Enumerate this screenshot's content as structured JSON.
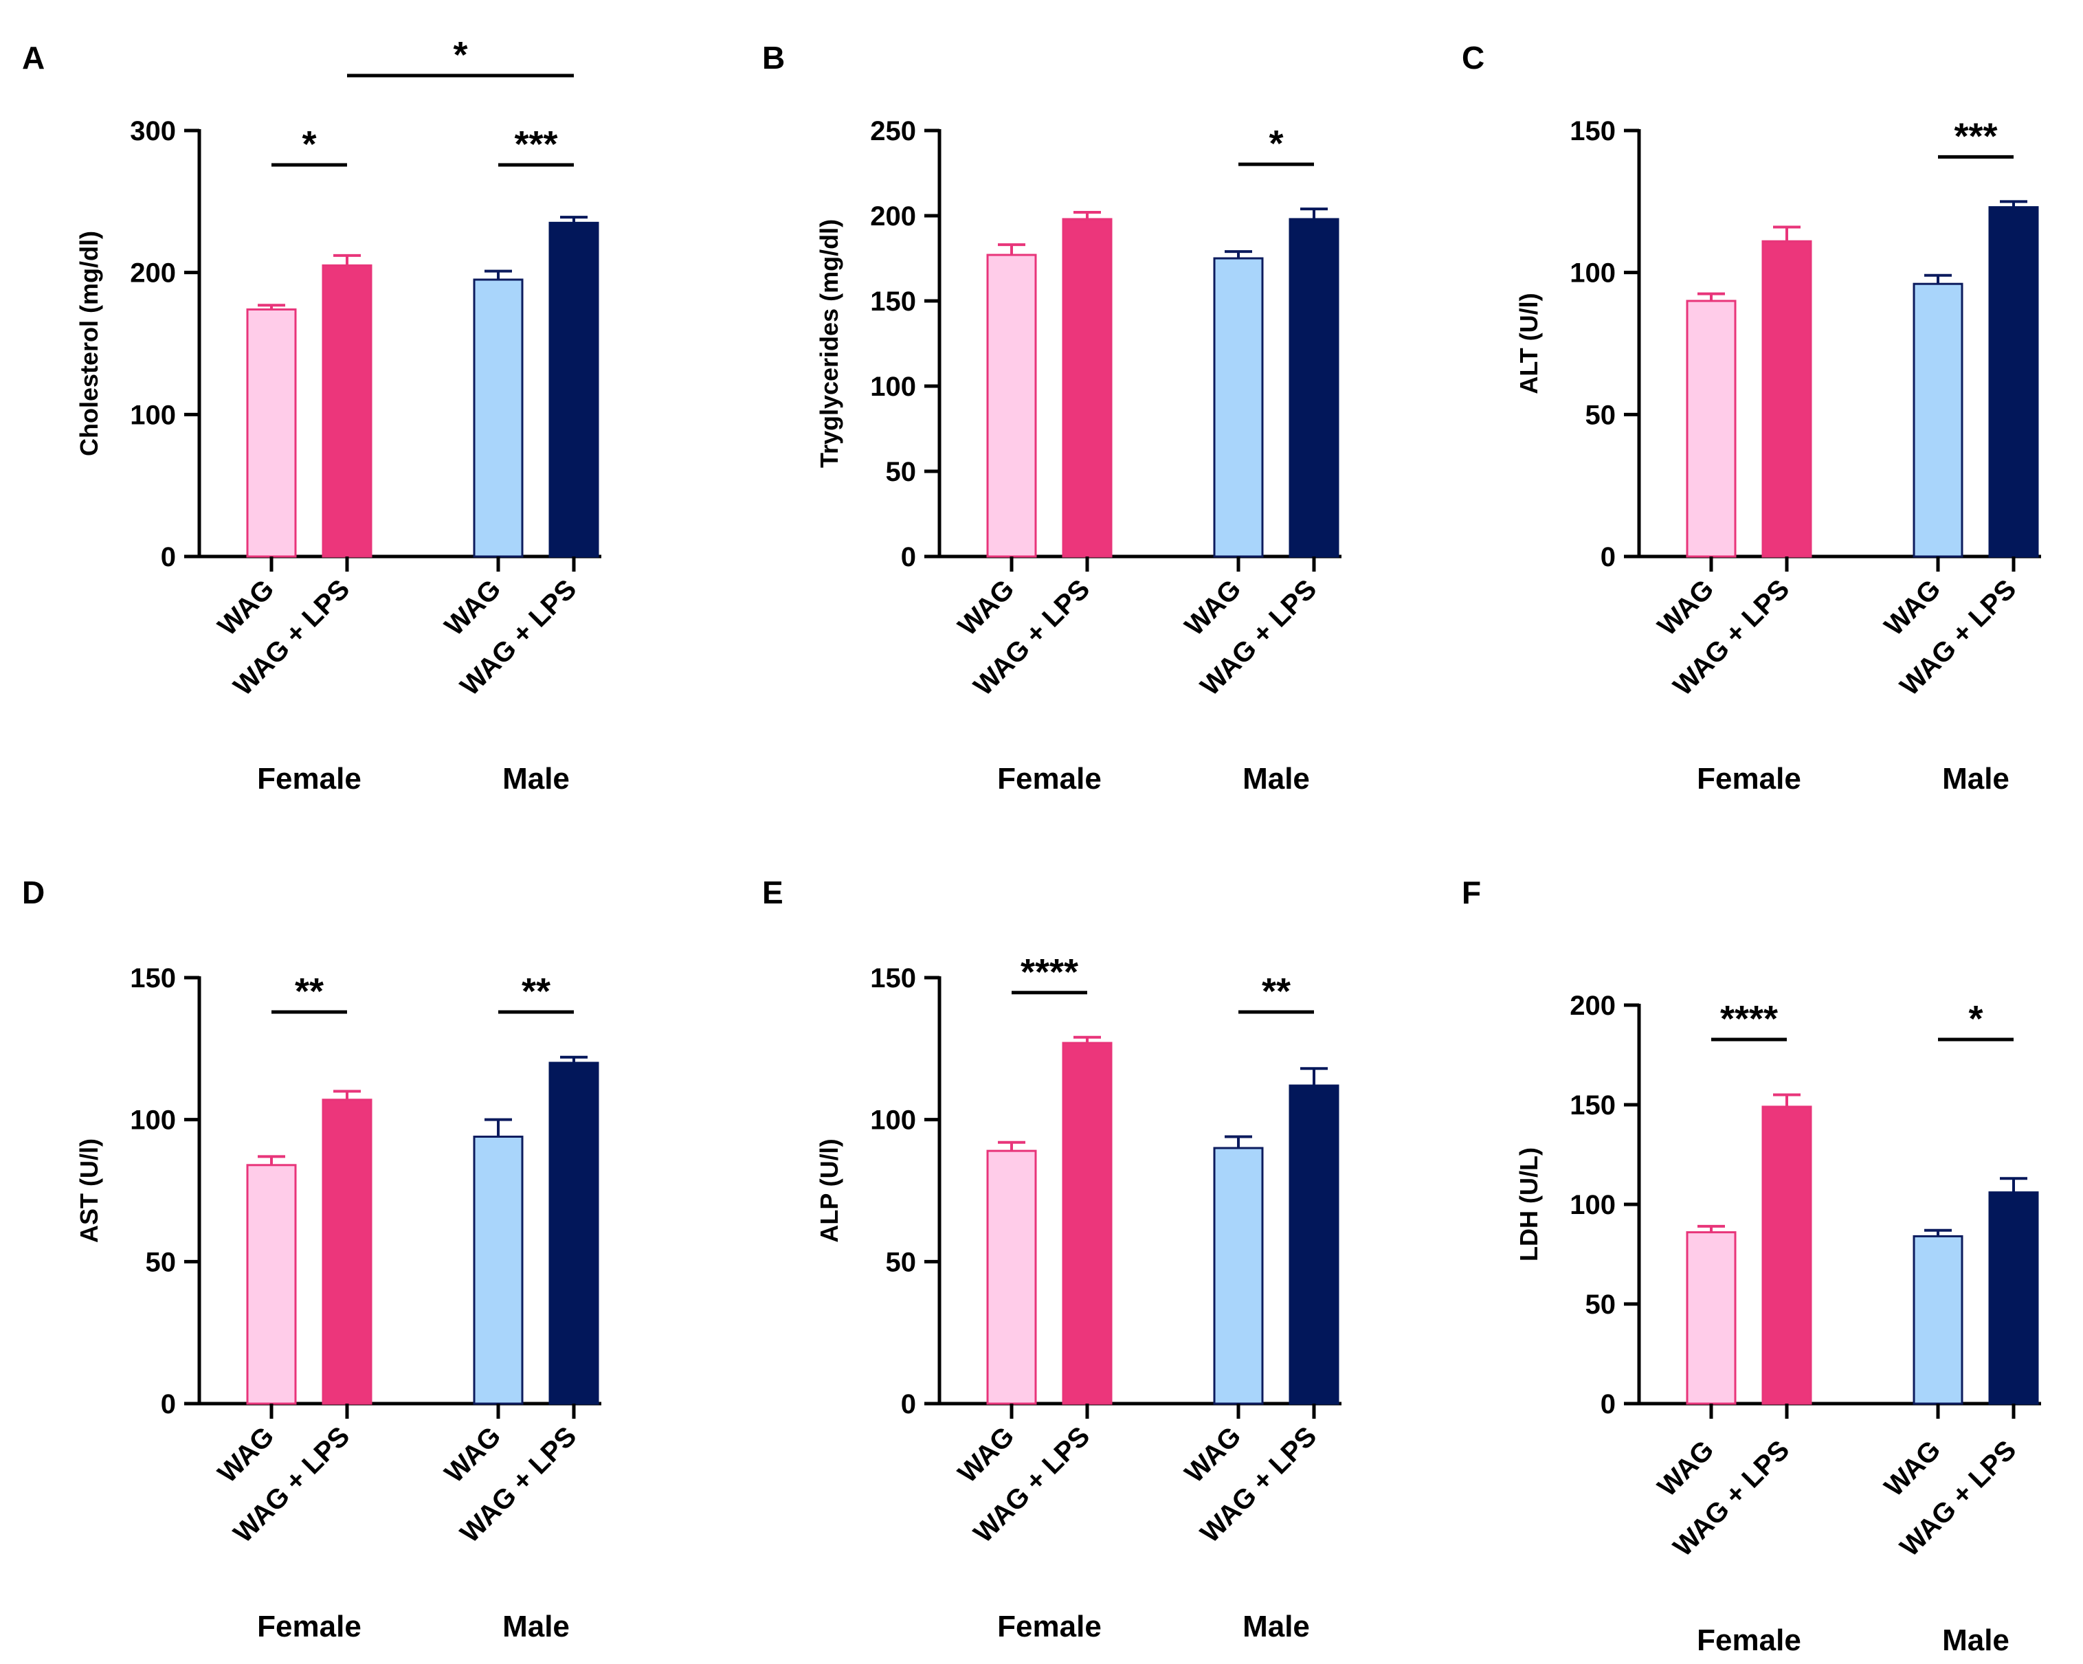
{
  "colors": {
    "female_wag_fill": "#FFCCE9",
    "female_wag_edge": "#E8357A",
    "female_lps_fill": "#EC367B",
    "female_lps_edge": "#E8357A",
    "male_wag_fill": "#A9D5FB",
    "male_wag_edge": "#0C1B5E",
    "male_lps_fill": "#02175A",
    "male_lps_edge": "#02175A",
    "axis": "#000000"
  },
  "chart_data": [
    {
      "panel": "A",
      "type": "bar",
      "ylabel": "Cholesterol (mg/dl)",
      "ylim": [
        0,
        300
      ],
      "yticks": [
        0,
        100,
        200,
        300
      ],
      "categories": [
        "WAG",
        "WAG + LPS",
        "WAG",
        "WAG + LPS"
      ],
      "groups": [
        "Female",
        "Male"
      ],
      "values": [
        174,
        205,
        195,
        235
      ],
      "errors": [
        3,
        7,
        6,
        4
      ],
      "significance": [
        {
          "from": 0,
          "to": 1,
          "label": "*"
        },
        {
          "from": 2,
          "to": 3,
          "label": "***"
        },
        {
          "from": 1,
          "to": 3,
          "label": "*",
          "level": "top"
        }
      ]
    },
    {
      "panel": "B",
      "type": "bar",
      "ylabel": "Tryglycerides (mg/dl)",
      "ylim": [
        0,
        250
      ],
      "yticks": [
        0,
        50,
        100,
        150,
        200,
        250
      ],
      "categories": [
        "WAG",
        "WAG + LPS",
        "WAG",
        "WAG + LPS"
      ],
      "groups": [
        "Female",
        "Male"
      ],
      "values": [
        177,
        198,
        175,
        198
      ],
      "errors": [
        6,
        4,
        4,
        6
      ],
      "significance": [
        {
          "from": 2,
          "to": 3,
          "label": "*"
        }
      ]
    },
    {
      "panel": "C",
      "type": "bar",
      "ylabel": "ALT (U/l)",
      "ylim": [
        0,
        150
      ],
      "yticks": [
        0,
        50,
        100,
        150
      ],
      "categories": [
        "WAG",
        "WAG + LPS",
        "WAG",
        "WAG + LPS"
      ],
      "groups": [
        "Female",
        "Male"
      ],
      "values": [
        90,
        111,
        96,
        123
      ],
      "errors": [
        2.5,
        5,
        3,
        2
      ],
      "significance": [
        {
          "from": 2,
          "to": 3,
          "label": "***"
        }
      ]
    },
    {
      "panel": "D",
      "type": "bar",
      "ylabel": "AST (U/l)",
      "ylim": [
        0,
        150
      ],
      "yticks": [
        0,
        50,
        100,
        150
      ],
      "categories": [
        "WAG",
        "WAG + LPS",
        "WAG",
        "WAG + LPS"
      ],
      "groups": [
        "Female",
        "Male"
      ],
      "values": [
        84,
        107,
        94,
        120
      ],
      "errors": [
        3,
        3,
        6,
        2
      ],
      "significance": [
        {
          "from": 0,
          "to": 1,
          "label": "**"
        },
        {
          "from": 2,
          "to": 3,
          "label": "**"
        }
      ]
    },
    {
      "panel": "E",
      "type": "bar",
      "ylabel": "ALP (U/l)",
      "ylim": [
        0,
        150
      ],
      "yticks": [
        0,
        50,
        100,
        150
      ],
      "categories": [
        "WAG",
        "WAG + LPS",
        "WAG",
        "WAG + LPS"
      ],
      "groups": [
        "Female",
        "Male"
      ],
      "values": [
        89,
        127,
        90,
        112
      ],
      "errors": [
        3,
        2,
        4,
        6
      ],
      "significance": [
        {
          "from": 0,
          "to": 1,
          "label": "****"
        },
        {
          "from": 2,
          "to": 3,
          "label": "**"
        }
      ]
    },
    {
      "panel": "F",
      "type": "bar",
      "ylabel": "LDH (U/L)",
      "ylim": [
        0,
        200
      ],
      "yticks": [
        0,
        50,
        100,
        150,
        200
      ],
      "categories": [
        "WAG",
        "WAG + LPS",
        "WAG",
        "WAG + LPS"
      ],
      "groups": [
        "Female",
        "Male"
      ],
      "values": [
        86,
        149,
        84,
        106
      ],
      "errors": [
        3,
        6,
        3,
        7
      ],
      "significance": [
        {
          "from": 0,
          "to": 1,
          "label": "****"
        },
        {
          "from": 2,
          "to": 3,
          "label": "*"
        }
      ]
    }
  ]
}
